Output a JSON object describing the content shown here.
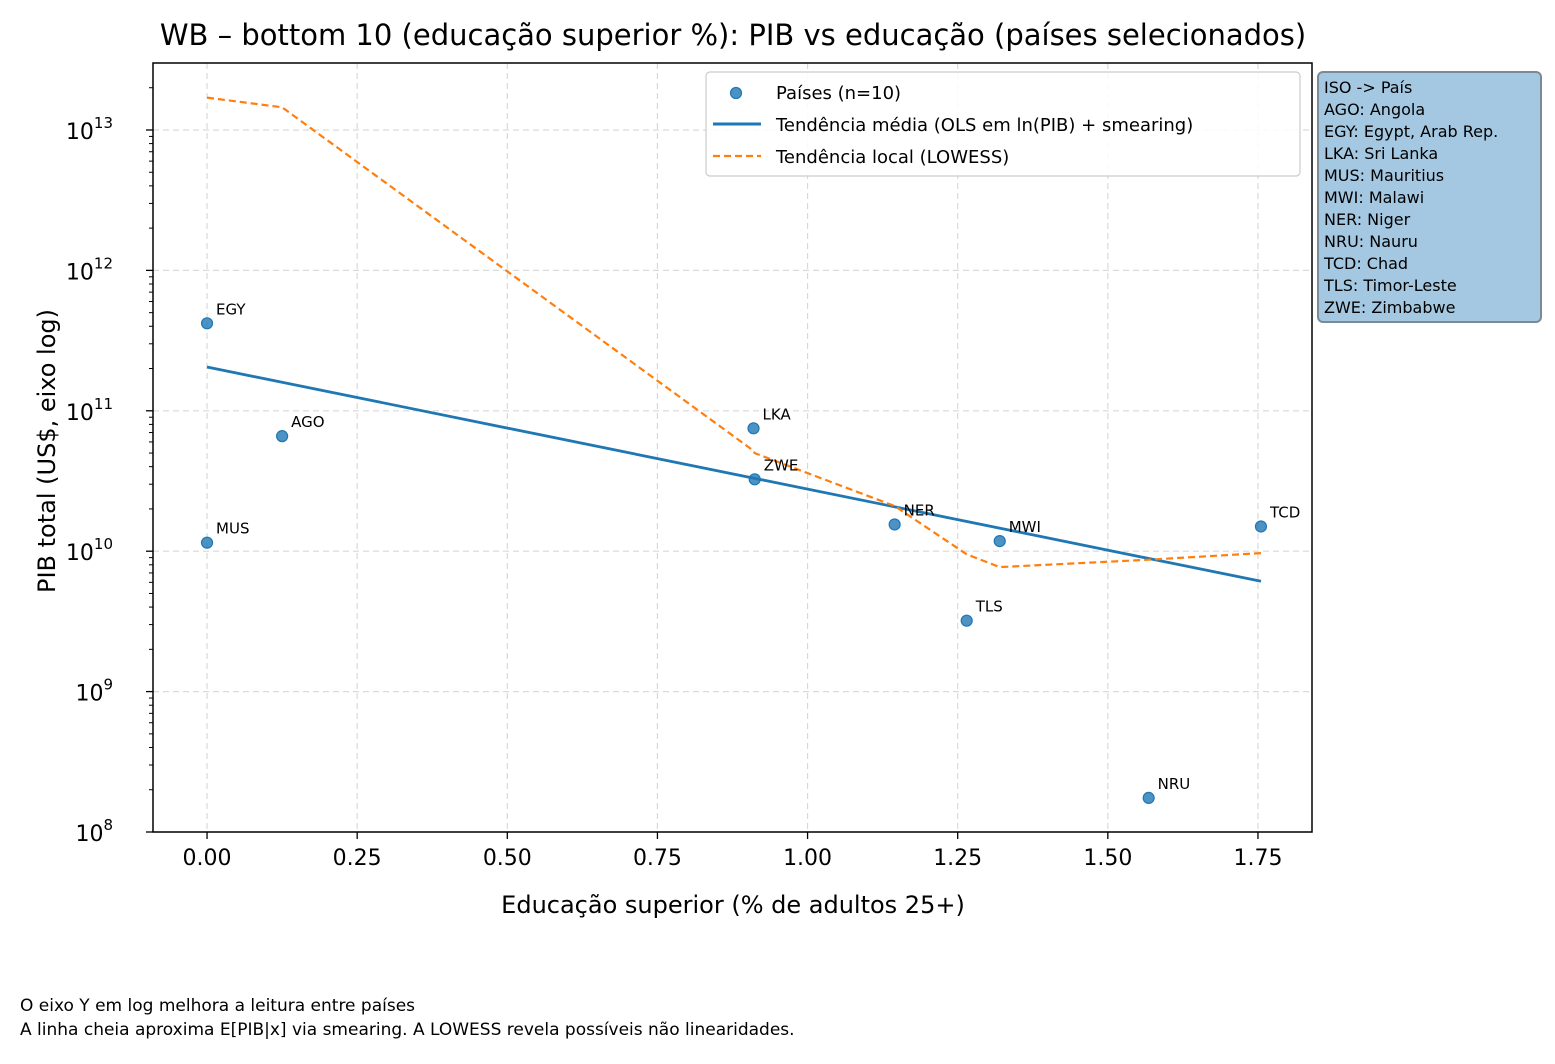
{
  "chart_data": {
    "type": "scatter",
    "title": "WB – bottom 10 (educação superior %): PIB vs educação (países selecionados)",
    "xlabel": "Educação superior (% de adultos 25+)",
    "ylabel": "PIB total (US$, eixo log)",
    "xlim": [
      -0.09,
      1.84
    ],
    "ylim": [
      100000000,
      30000000000000
    ],
    "y_scale": "log",
    "grid": true,
    "legend_position": "top-right",
    "x_ticks": [
      0.0,
      0.25,
      0.5,
      0.75,
      1.0,
      1.25,
      1.5,
      1.75
    ],
    "x_tick_labels": [
      "0.00",
      "0.25",
      "0.50",
      "0.75",
      "1.00",
      "1.25",
      "1.50",
      "1.75"
    ],
    "y_ticks": [
      {
        "value": 100000000,
        "base": "10",
        "exp": "8"
      },
      {
        "value": 1000000000,
        "base": "10",
        "exp": "9"
      },
      {
        "value": 10000000000,
        "base": "10",
        "exp": "10"
      },
      {
        "value": 100000000000,
        "base": "10",
        "exp": "11"
      },
      {
        "value": 1000000000000,
        "base": "10",
        "exp": "12"
      },
      {
        "value": 10000000000000,
        "base": "10",
        "exp": "13"
      }
    ],
    "points": [
      {
        "label": "EGY",
        "x": 0.0,
        "y": 420000000000
      },
      {
        "label": "AGO",
        "x": 0.125,
        "y": 66000000000
      },
      {
        "label": "MUS",
        "x": 0.0,
        "y": 11500000000
      },
      {
        "label": "LKA",
        "x": 0.91,
        "y": 75000000000
      },
      {
        "label": "ZWE",
        "x": 0.912,
        "y": 32500000000
      },
      {
        "label": "NER",
        "x": 1.145,
        "y": 15500000000
      },
      {
        "label": "MWI",
        "x": 1.32,
        "y": 11800000000
      },
      {
        "label": "TLS",
        "x": 1.265,
        "y": 3200000000
      },
      {
        "label": "NRU",
        "x": 1.568,
        "y": 175000000
      },
      {
        "label": "TCD",
        "x": 1.755,
        "y": 15000000000
      }
    ],
    "series": [
      {
        "name": "Países (n=10)",
        "kind": "scatter",
        "color": "#1f77b4"
      },
      {
        "name": "Tendência média (OLS em ln(PIB) + smearing)",
        "kind": "line",
        "color": "#1f77b4",
        "x": [
          0.0,
          1.755
        ],
        "y": [
          205000000000,
          6100000000
        ]
      },
      {
        "name": "Tendência local (LOWESS)",
        "kind": "dashed-line",
        "color": "#ff7f0e",
        "x": [
          0.0,
          0.125,
          0.91,
          0.912,
          1.145,
          1.265,
          1.32,
          1.568,
          1.755
        ],
        "y": [
          17000000000000,
          14500000000000,
          52000000000,
          50000000000,
          21000000000,
          9500000000,
          7700000000,
          8700000000,
          9700000000
        ]
      }
    ],
    "iso_legend": {
      "header": "ISO -> País",
      "entries": [
        "AGO: Angola",
        "EGY: Egypt, Arab Rep.",
        "LKA: Sri Lanka",
        "MUS: Mauritius",
        "MWI: Malawi",
        "NER: Niger",
        "NRU: Nauru",
        "TCD: Chad",
        "TLS: Timor-Leste",
        "ZWE: Zimbabwe"
      ]
    }
  },
  "footnotes": [
    "O eixo Y em log melhora a leitura entre países",
    "A linha cheia aproxima E[PIB|x] via smearing. A LOWESS revela possíveis não linearidades."
  ]
}
